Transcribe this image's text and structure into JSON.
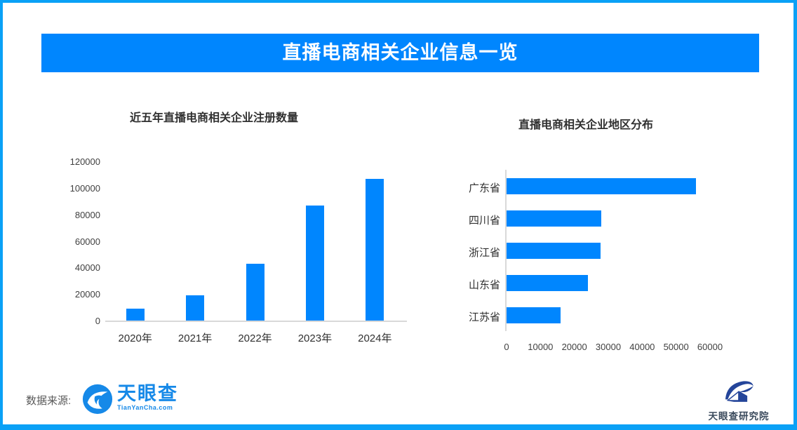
{
  "page": {
    "title": "直播电商相关企业信息一览",
    "source_label": "数据来源:"
  },
  "colors": {
    "accent_blue": "#0086FE",
    "border_blue": "#0AA1F6",
    "axis_gray": "#D9D9D9",
    "tyc_logo_blue": "#1689E8",
    "research_navy": "#24459A"
  },
  "logos": {
    "tianyancha": {
      "name": "天眼查",
      "domain": "TianYanCha.com",
      "icon": "tianyancha-eye-icon"
    },
    "research": {
      "name": "天眼查研究院",
      "icon": "tianyancha-research-icon"
    }
  },
  "chart_data": [
    {
      "type": "bar",
      "orientation": "vertical",
      "title": "近五年直播电商相关企业注册数量",
      "categories": [
        "2020年",
        "2021年",
        "2022年",
        "2023年",
        "2024年"
      ],
      "values": [
        8800,
        19000,
        43000,
        86700,
        106800
      ],
      "xlabel": "",
      "ylabel": "",
      "ylim": [
        0,
        120000
      ],
      "y_ticks": [
        0,
        20000,
        40000,
        60000,
        80000,
        100000,
        120000
      ],
      "grid": false,
      "legend": false,
      "bar_color": "#0086FE"
    },
    {
      "type": "bar",
      "orientation": "horizontal",
      "title": "直播电商相关企业地区分布",
      "categories": [
        "广东省",
        "四川省",
        "浙江省",
        "山东省",
        "江苏省"
      ],
      "values": [
        55800,
        28000,
        27700,
        24000,
        16000
      ],
      "xlabel": "",
      "ylabel": "",
      "xlim": [
        0,
        60000
      ],
      "x_ticks": [
        0,
        10000,
        20000,
        30000,
        40000,
        50000,
        60000
      ],
      "grid": false,
      "legend": false,
      "bar_color": "#0086FE"
    }
  ]
}
